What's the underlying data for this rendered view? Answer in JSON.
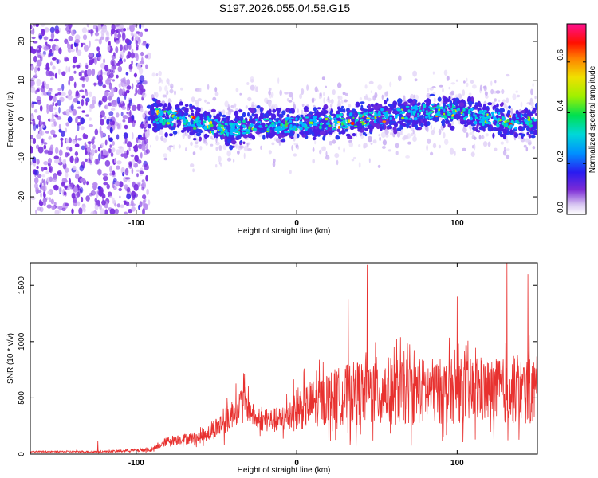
{
  "title": "S197.2026.055.04.58.G15",
  "chart_data": [
    {
      "type": "heatmap",
      "name": "spectrogram",
      "xlabel": "Height of straight line (km)",
      "ylabel": "Frequency (Hz)",
      "xlim": [
        -166,
        150
      ],
      "ylim": [
        -24.5,
        24.5
      ],
      "x_ticks": [
        -100,
        0,
        100
      ],
      "x_tick_labels": [
        "-100",
        "0",
        "100"
      ],
      "y_ticks": [
        -20,
        -10,
        0,
        10,
        20
      ],
      "y_tick_labels": [
        "-20",
        "-10",
        "0",
        "10",
        "20"
      ],
      "colorbar": {
        "label": "Normalized spectral amplitude",
        "range": [
          0.0,
          0.75
        ],
        "ticks": [
          0.0,
          0.2,
          0.4,
          0.6
        ],
        "tick_labels": [
          "0.0",
          "0.2",
          "0.4",
          "0.6"
        ]
      },
      "noise_region_end_km": -92,
      "signal_center_hz": [
        {
          "x": -90,
          "f": 1
        },
        {
          "x": -60,
          "f": -1
        },
        {
          "x": -40,
          "f": -3
        },
        {
          "x": -25,
          "f": -1
        },
        {
          "x": -10,
          "f": -2
        },
        {
          "x": 0,
          "f": -1
        },
        {
          "x": 20,
          "f": -1
        },
        {
          "x": 40,
          "f": 0
        },
        {
          "x": 60,
          "f": 1
        },
        {
          "x": 80,
          "f": 2
        },
        {
          "x": 100,
          "f": 2
        },
        {
          "x": 120,
          "f": 0
        },
        {
          "x": 150,
          "f": -1
        }
      ]
    },
    {
      "type": "line",
      "name": "snr",
      "xlabel": "Height of straight line (km)",
      "ylabel": "SNR (10 * v/v)",
      "xlim": [
        -166,
        150
      ],
      "ylim": [
        0,
        1700
      ],
      "x_ticks": [
        -100,
        0,
        100
      ],
      "x_tick_labels": [
        "-100",
        "0",
        "100"
      ],
      "y_ticks": [
        0,
        500,
        1000,
        1500
      ],
      "y_tick_labels": [
        "0",
        "500",
        "1000",
        "1500"
      ],
      "color": "#e8312f",
      "envelope": [
        {
          "x": -166,
          "base": 22,
          "amp": 10
        },
        {
          "x": -120,
          "base": 22,
          "amp": 14
        },
        {
          "x": -90,
          "base": 40,
          "amp": 30
        },
        {
          "x": -80,
          "base": 120,
          "amp": 70
        },
        {
          "x": -60,
          "base": 150,
          "amp": 90
        },
        {
          "x": -45,
          "base": 280,
          "amp": 200
        },
        {
          "x": -33,
          "base": 480,
          "amp": 260
        },
        {
          "x": -25,
          "base": 300,
          "amp": 150
        },
        {
          "x": -10,
          "base": 300,
          "amp": 200
        },
        {
          "x": 0,
          "base": 400,
          "amp": 320
        },
        {
          "x": 20,
          "base": 500,
          "amp": 400
        },
        {
          "x": 45,
          "base": 560,
          "amp": 520
        },
        {
          "x": 100,
          "base": 560,
          "amp": 480
        },
        {
          "x": 150,
          "base": 560,
          "amp": 500
        }
      ],
      "peaks": [
        {
          "x": -124,
          "y": 120
        },
        {
          "x": -33,
          "y": 720
        },
        {
          "x": 44,
          "y": 1680
        },
        {
          "x": 32,
          "y": 1380
        },
        {
          "x": 131,
          "y": 1700
        },
        {
          "x": 144,
          "y": 1600
        },
        {
          "x": 100,
          "y": 1400
        }
      ]
    }
  ]
}
